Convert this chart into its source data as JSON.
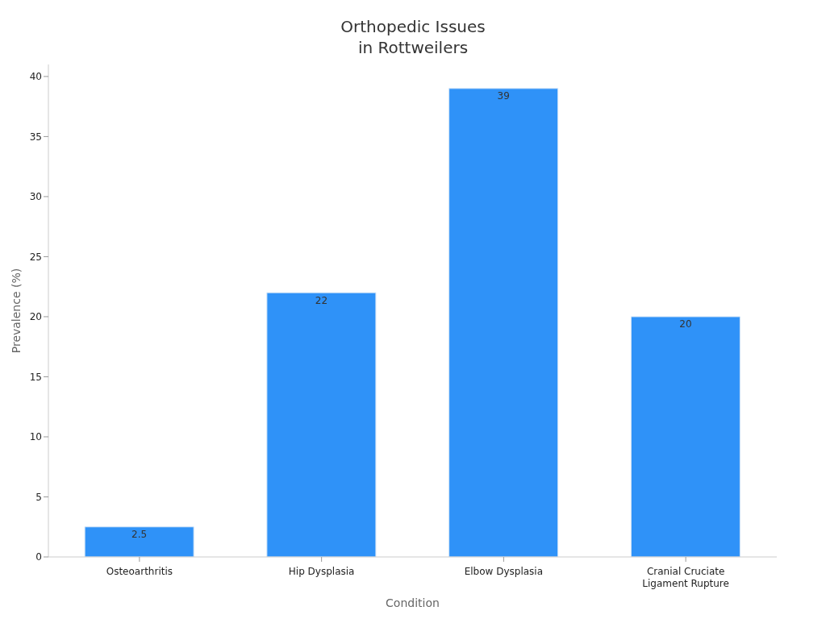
{
  "chart_data": {
    "type": "bar",
    "title": "Orthopedic Issues\nin Rottweilers",
    "xlabel": "Condition",
    "ylabel": "Prevalence (%)",
    "categories": [
      "Osteoarthritis",
      "Hip Dysplasia",
      "Elbow Dysplasia",
      "Cranial Cruciate Ligament Rupture"
    ],
    "values": [
      2.5,
      22,
      39,
      20
    ],
    "color": "#2f92f8",
    "ylim": [
      0,
      41
    ],
    "yticks": [
      0,
      5,
      10,
      15,
      20,
      25,
      30,
      35,
      40
    ],
    "grid": false,
    "data_labels": true,
    "legend": false
  }
}
